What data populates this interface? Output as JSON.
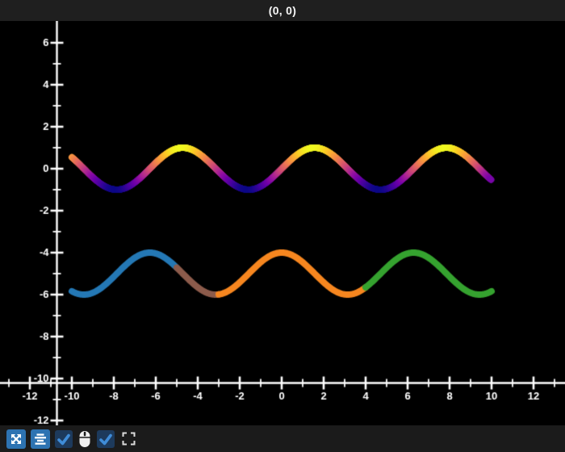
{
  "header": {
    "title": "(0, 0)"
  },
  "colors": {
    "titlebar_bg": "#1f1f1f",
    "toolbar_bg": "#1b1b1b",
    "plot_bg": "#000000",
    "axis": "#ffffff",
    "accent_button": "#2d73b2",
    "checkbox_bg": "#1d3a5c",
    "checkmark": "#3f8cd8",
    "icon_white": "#f0f0f0"
  },
  "toolbar": {
    "icons": [
      "expand-arrows-icon",
      "align-center-icon",
      "checkbox",
      "mouse-icon",
      "checkbox",
      "fullscreen-icon"
    ],
    "checkboxes": [
      {
        "checked": true
      },
      {
        "checked": true
      }
    ]
  },
  "chart_data": {
    "type": "line",
    "title": "(0, 0)",
    "background": "#000000",
    "grid": false,
    "axes": {
      "x": {
        "major_tick_values": [
          -12,
          -10,
          -8,
          -6,
          -4,
          -2,
          0,
          2,
          4,
          6,
          8,
          10,
          12
        ],
        "minor_tick_values": [
          -13,
          -11,
          -9,
          -7,
          -5,
          -3,
          -1,
          1,
          3,
          5,
          7,
          9,
          11,
          13
        ],
        "visible_range": [
          -13.4,
          13.5
        ]
      },
      "y": {
        "major_tick_values": [
          6,
          4,
          2,
          0,
          -2,
          -4,
          -6,
          -8,
          -10,
          -12
        ],
        "minor_tick_values": [
          5,
          3,
          1,
          -1,
          -3,
          -5,
          -7,
          -9,
          -11
        ],
        "visible_range": [
          -12.7,
          7.0
        ]
      }
    },
    "series": [
      {
        "name": "gradient-sine-wave",
        "function": "sin",
        "amplitude": 1,
        "y_offset": 0,
        "x_start": -10,
        "x_end": 10,
        "stroke_width": 8,
        "coloring": "colormap",
        "colormap_name": "plasma",
        "colormap_stops": [
          {
            "t": 0.0,
            "color": "#0d0887"
          },
          {
            "t": 0.1,
            "color": "#41049d"
          },
          {
            "t": 0.2,
            "color": "#6a00a8"
          },
          {
            "t": 0.3,
            "color": "#8f0da4"
          },
          {
            "t": 0.4,
            "color": "#b12a90"
          },
          {
            "t": 0.5,
            "color": "#cc4778"
          },
          {
            "t": 0.6,
            "color": "#e16462"
          },
          {
            "t": 0.7,
            "color": "#f2844b"
          },
          {
            "t": 0.8,
            "color": "#fca636"
          },
          {
            "t": 0.9,
            "color": "#fcce25"
          },
          {
            "t": 1.0,
            "color": "#f0f921"
          }
        ]
      },
      {
        "name": "segmented-cosine-wave",
        "function": "cos",
        "amplitude": 1,
        "y_offset": -5,
        "x_start": -10,
        "x_end": 10,
        "stroke_width": 8,
        "coloring": "segments",
        "segments": [
          {
            "x_from": -10,
            "x_to": -5,
            "color": "#2478b5"
          },
          {
            "x_from": -5,
            "x_to": -3,
            "color": "#8c5b4b"
          },
          {
            "x_from": -3,
            "x_to": 4,
            "color": "#f6861f"
          },
          {
            "x_from": 4,
            "x_to": 10,
            "color": "#35a22f"
          }
        ]
      }
    ]
  }
}
